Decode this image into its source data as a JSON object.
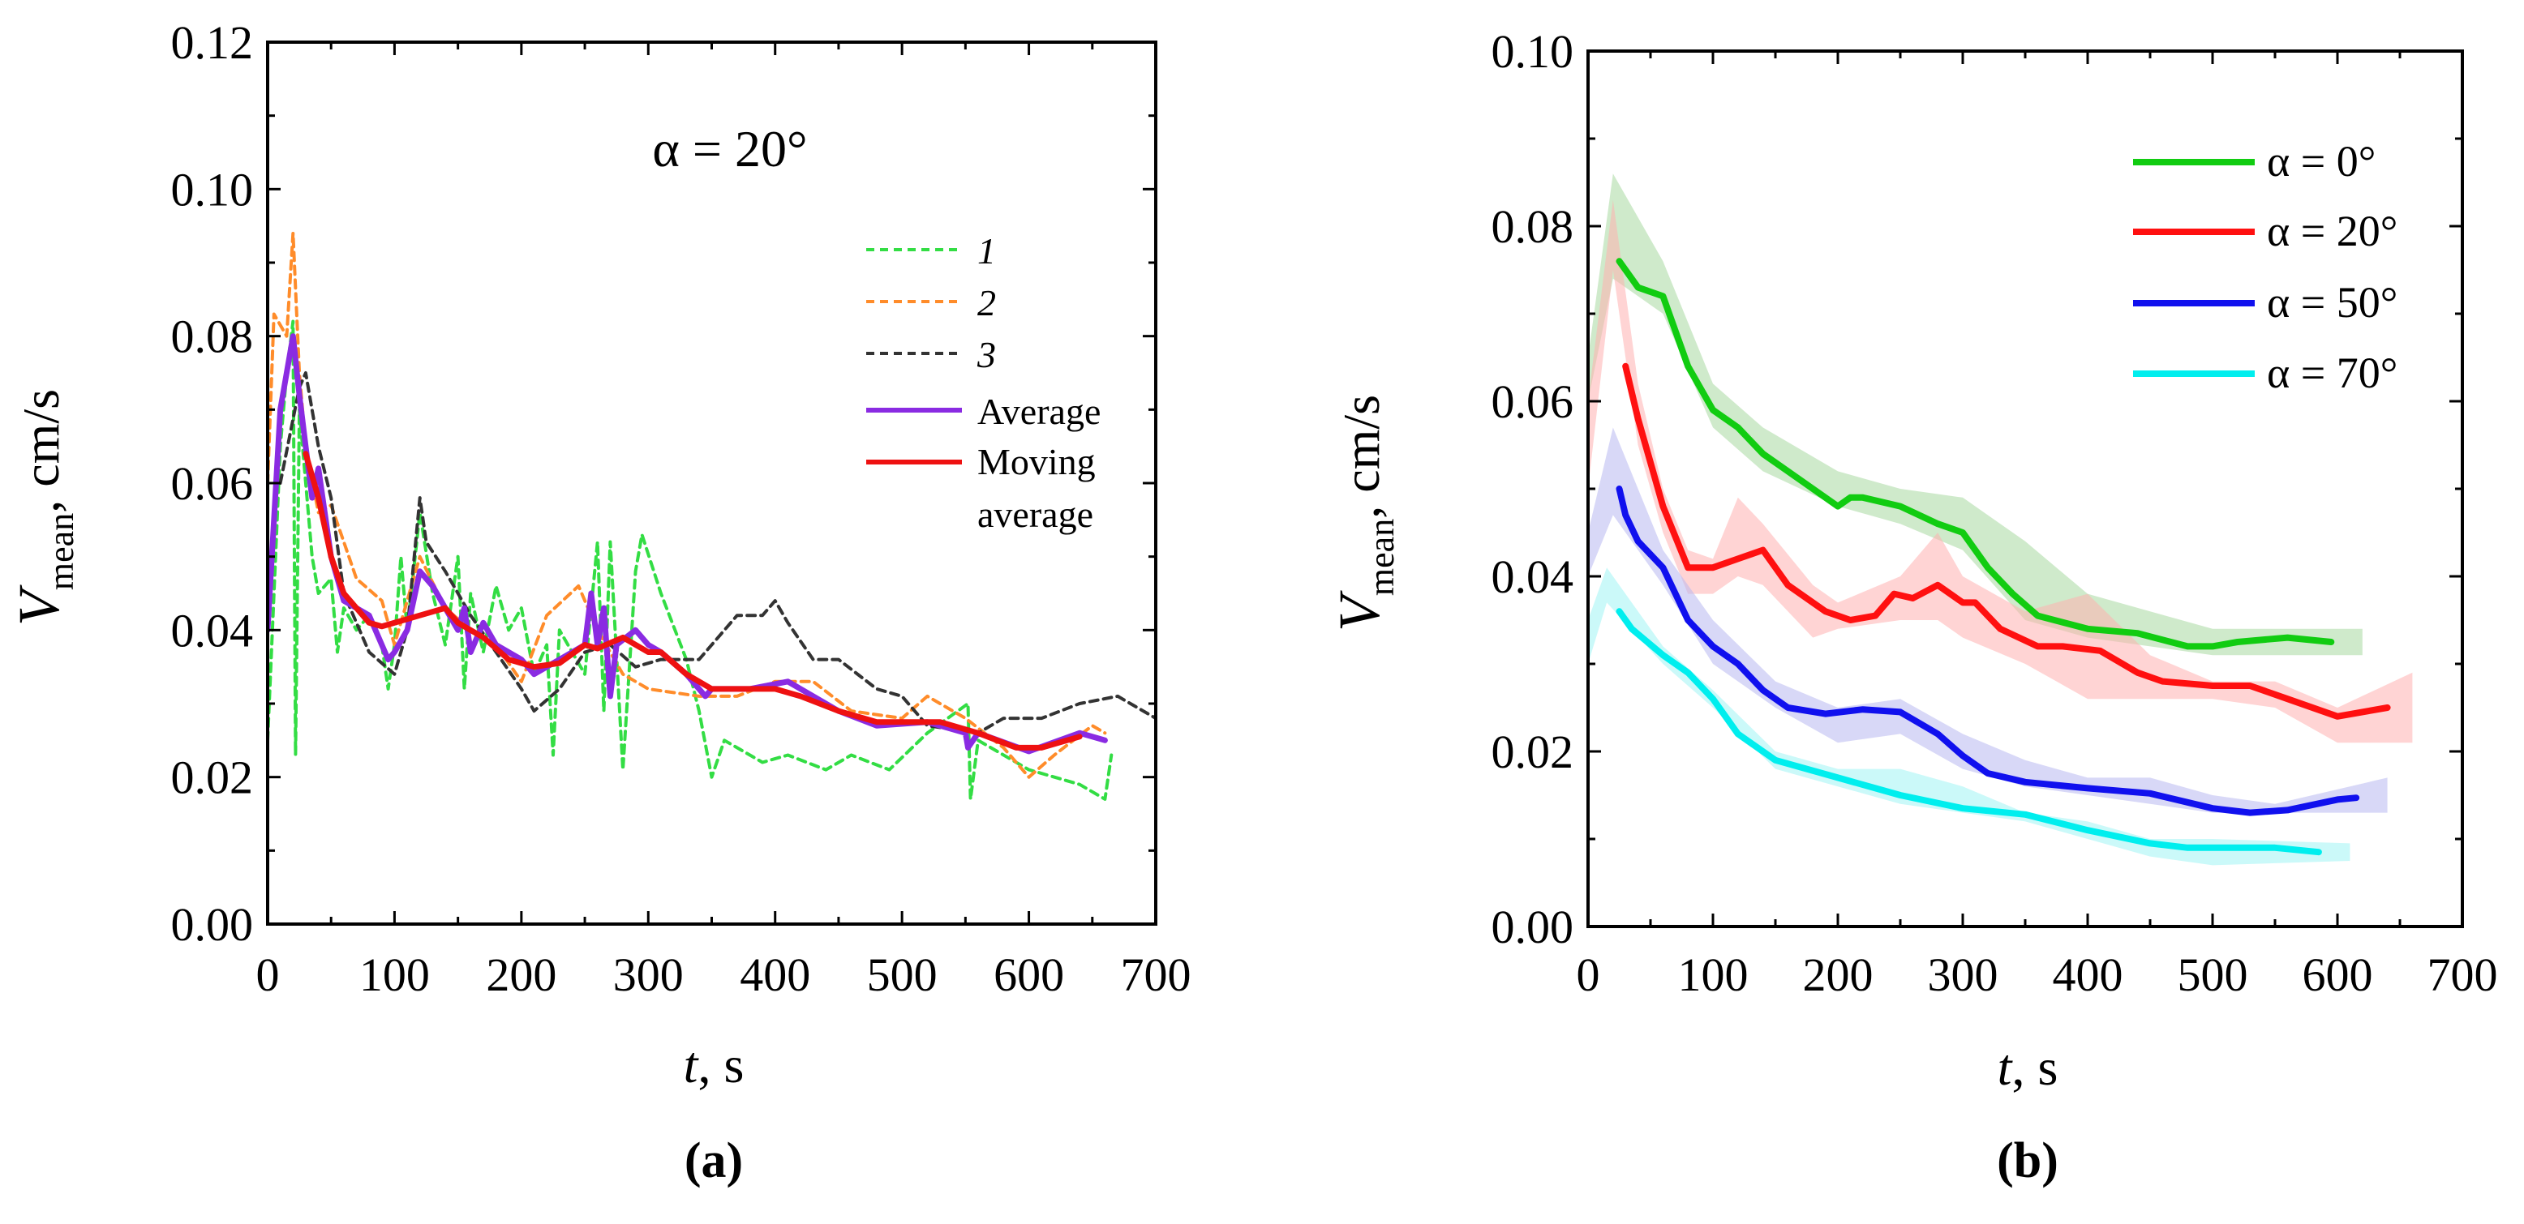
{
  "chart_data": [
    {
      "panel": "(a)",
      "type": "line",
      "annotation": "α = 20°",
      "xlabel_italic": "t",
      "xlabel_rest": ", s",
      "ylabel_main": "V",
      "ylabel_sub": "mean",
      "ylabel_rest": ", cm/s",
      "xlim": [
        0,
        700
      ],
      "ylim": [
        0,
        0.12
      ],
      "xticks": [
        "0",
        "100",
        "200",
        "300",
        "400",
        "500",
        "600",
        "700"
      ],
      "yticks": [
        "0.00",
        "0.02",
        "0.04",
        "0.06",
        "0.08",
        "0.10",
        "0.12"
      ],
      "legend_position": "upper-right",
      "series": [
        {
          "name": "1",
          "label_italic": true,
          "color": "#33dd44",
          "style": "dashed",
          "x": [
            0,
            5,
            10,
            15,
            20,
            22,
            25,
            35,
            40,
            50,
            55,
            60,
            70,
            80,
            90,
            95,
            100,
            105,
            110,
            120,
            130,
            140,
            150,
            155,
            160,
            170,
            180,
            190,
            200,
            210,
            220,
            225,
            230,
            250,
            260,
            265,
            270,
            280,
            290,
            295,
            310,
            330,
            340,
            350,
            360,
            390,
            410,
            440,
            460,
            490,
            520,
            552,
            554,
            560,
            600,
            640,
            660,
            665
          ],
          "y": [
            0.025,
            0.045,
            0.065,
            0.075,
            0.082,
            0.023,
            0.07,
            0.05,
            0.045,
            0.047,
            0.037,
            0.043,
            0.04,
            0.042,
            0.038,
            0.032,
            0.038,
            0.05,
            0.04,
            0.056,
            0.045,
            0.038,
            0.05,
            0.032,
            0.045,
            0.037,
            0.046,
            0.04,
            0.043,
            0.034,
            0.038,
            0.023,
            0.04,
            0.034,
            0.052,
            0.029,
            0.052,
            0.021,
            0.048,
            0.053,
            0.045,
            0.036,
            0.029,
            0.02,
            0.025,
            0.022,
            0.023,
            0.021,
            0.023,
            0.021,
            0.026,
            0.03,
            0.017,
            0.025,
            0.021,
            0.019,
            0.017,
            0.023
          ]
        },
        {
          "name": "2",
          "label_italic": true,
          "color": "#ff8c2a",
          "style": "dashed",
          "x": [
            0,
            5,
            15,
            20,
            25,
            30,
            40,
            50,
            60,
            70,
            90,
            100,
            120,
            140,
            160,
            180,
            200,
            220,
            245,
            260,
            280,
            300,
            340,
            370,
            400,
            430,
            460,
            500,
            520,
            550,
            580,
            600,
            620,
            650,
            660
          ],
          "y": [
            0.06,
            0.083,
            0.08,
            0.094,
            0.075,
            0.065,
            0.056,
            0.057,
            0.052,
            0.047,
            0.044,
            0.038,
            0.05,
            0.043,
            0.04,
            0.038,
            0.033,
            0.042,
            0.046,
            0.04,
            0.034,
            0.032,
            0.031,
            0.031,
            0.033,
            0.033,
            0.029,
            0.028,
            0.031,
            0.028,
            0.024,
            0.02,
            0.023,
            0.027,
            0.026
          ]
        },
        {
          "name": "3",
          "label_italic": true,
          "color": "#333333",
          "style": "dashed",
          "x": [
            10,
            25,
            30,
            40,
            50,
            60,
            70,
            80,
            100,
            110,
            120,
            125,
            140,
            160,
            180,
            200,
            210,
            230,
            250,
            270,
            290,
            310,
            340,
            370,
            390,
            400,
            410,
            430,
            450,
            480,
            500,
            520,
            560,
            580,
            610,
            640,
            670,
            700
          ],
          "y": [
            0.06,
            0.073,
            0.075,
            0.065,
            0.058,
            0.045,
            0.041,
            0.037,
            0.034,
            0.04,
            0.058,
            0.052,
            0.048,
            0.042,
            0.037,
            0.032,
            0.029,
            0.032,
            0.037,
            0.038,
            0.035,
            0.036,
            0.036,
            0.042,
            0.042,
            0.044,
            0.041,
            0.036,
            0.036,
            0.032,
            0.031,
            0.027,
            0.026,
            0.028,
            0.028,
            0.03,
            0.031,
            0.028
          ]
        },
        {
          "name": "Average",
          "label_italic": false,
          "color": "#8a2be2",
          "style": "solid",
          "x": [
            0,
            10,
            20,
            25,
            30,
            35,
            40,
            50,
            60,
            80,
            95,
            100,
            110,
            120,
            130,
            150,
            155,
            160,
            170,
            180,
            200,
            210,
            220,
            230,
            250,
            255,
            260,
            265,
            270,
            275,
            290,
            300,
            310,
            330,
            345,
            350,
            380,
            410,
            430,
            450,
            480,
            520,
            550,
            552,
            560,
            600,
            640,
            660
          ],
          "y": [
            0.04,
            0.07,
            0.08,
            0.072,
            0.065,
            0.058,
            0.062,
            0.05,
            0.044,
            0.042,
            0.036,
            0.037,
            0.04,
            0.048,
            0.046,
            0.04,
            0.043,
            0.037,
            0.041,
            0.038,
            0.036,
            0.034,
            0.035,
            0.036,
            0.038,
            0.045,
            0.038,
            0.043,
            0.031,
            0.038,
            0.04,
            0.038,
            0.037,
            0.034,
            0.031,
            0.032,
            0.032,
            0.033,
            0.031,
            0.029,
            0.027,
            0.0275,
            0.026,
            0.024,
            0.026,
            0.0235,
            0.026,
            0.025
          ]
        },
        {
          "name": "Moving average",
          "label_lines": [
            "Moving",
            "average"
          ],
          "label_italic": false,
          "color": "#ee1111",
          "style": "solid",
          "x": [
            30,
            40,
            50,
            60,
            70,
            80,
            90,
            100,
            120,
            140,
            150,
            170,
            190,
            210,
            230,
            250,
            260,
            280,
            300,
            310,
            330,
            350,
            380,
            400,
            420,
            450,
            480,
            500,
            530,
            560,
            590,
            610,
            640
          ],
          "y": [
            0.064,
            0.058,
            0.05,
            0.045,
            0.043,
            0.041,
            0.0405,
            0.041,
            0.042,
            0.043,
            0.041,
            0.039,
            0.036,
            0.035,
            0.0355,
            0.038,
            0.0375,
            0.039,
            0.037,
            0.037,
            0.034,
            0.032,
            0.032,
            0.032,
            0.031,
            0.029,
            0.0275,
            0.0275,
            0.0275,
            0.026,
            0.024,
            0.024,
            0.0255
          ]
        }
      ]
    },
    {
      "panel": "(b)",
      "type": "line",
      "xlabel_italic": "t",
      "xlabel_rest": ", s",
      "ylabel_main": "V",
      "ylabel_sub": "mean",
      "ylabel_rest": ", cm/s",
      "xlim": [
        0,
        700
      ],
      "ylim": [
        0,
        0.1
      ],
      "xticks": [
        "0",
        "100",
        "200",
        "300",
        "400",
        "500",
        "600",
        "700"
      ],
      "yticks": [
        "0.00",
        "0.02",
        "0.04",
        "0.06",
        "0.08",
        "0.10"
      ],
      "legend_position": "upper-right",
      "series": [
        {
          "name": "α = 0°",
          "color": "#11cc11",
          "band_color": "#a8d8a0",
          "x": [
            25,
            40,
            60,
            80,
            100,
            120,
            140,
            160,
            200,
            210,
            220,
            250,
            280,
            300,
            320,
            340,
            360,
            400,
            440,
            480,
            500,
            520,
            560,
            595
          ],
          "y": [
            0.076,
            0.073,
            0.072,
            0.064,
            0.059,
            0.057,
            0.054,
            0.052,
            0.048,
            0.049,
            0.049,
            0.048,
            0.046,
            0.045,
            0.041,
            0.038,
            0.0355,
            0.034,
            0.0335,
            0.032,
            0.032,
            0.0325,
            0.033,
            0.0325
          ],
          "band_x": [
            0,
            20,
            60,
            100,
            140,
            200,
            250,
            300,
            350,
            400,
            450,
            500,
            550,
            620
          ],
          "band_low": [
            0.06,
            0.074,
            0.07,
            0.057,
            0.052,
            0.048,
            0.046,
            0.043,
            0.035,
            0.033,
            0.032,
            0.031,
            0.031,
            0.031
          ],
          "band_high": [
            0.065,
            0.086,
            0.076,
            0.062,
            0.057,
            0.052,
            0.05,
            0.049,
            0.044,
            0.038,
            0.036,
            0.034,
            0.034,
            0.034
          ]
        },
        {
          "name": "α = 20°",
          "color": "#ff1010",
          "band_color": "#ffb0b0",
          "x": [
            30,
            40,
            60,
            80,
            100,
            120,
            140,
            160,
            190,
            210,
            230,
            245,
            260,
            280,
            300,
            310,
            330,
            360,
            380,
            410,
            440,
            460,
            500,
            530,
            560,
            600,
            640
          ],
          "y": [
            0.064,
            0.058,
            0.048,
            0.041,
            0.041,
            0.042,
            0.043,
            0.039,
            0.036,
            0.035,
            0.0355,
            0.038,
            0.0375,
            0.039,
            0.037,
            0.037,
            0.034,
            0.032,
            0.032,
            0.0315,
            0.029,
            0.028,
            0.0275,
            0.0275,
            0.026,
            0.024,
            0.025
          ],
          "band_x": [
            0,
            20,
            40,
            60,
            80,
            100,
            120,
            140,
            180,
            200,
            250,
            280,
            300,
            350,
            400,
            450,
            500,
            550,
            600,
            660
          ],
          "band_low": [
            0.05,
            0.075,
            0.055,
            0.045,
            0.038,
            0.038,
            0.04,
            0.039,
            0.033,
            0.034,
            0.035,
            0.035,
            0.033,
            0.03,
            0.026,
            0.026,
            0.026,
            0.025,
            0.021,
            0.021
          ],
          "band_high": [
            0.06,
            0.083,
            0.062,
            0.05,
            0.043,
            0.042,
            0.049,
            0.046,
            0.039,
            0.037,
            0.04,
            0.045,
            0.04,
            0.036,
            0.038,
            0.031,
            0.028,
            0.028,
            0.025,
            0.029
          ]
        },
        {
          "name": "α = 50°",
          "color": "#1010ee",
          "band_color": "#b8b8f0",
          "x": [
            25,
            30,
            40,
            60,
            80,
            100,
            120,
            140,
            160,
            190,
            220,
            250,
            280,
            300,
            320,
            350,
            400,
            450,
            500,
            530,
            560,
            600,
            615
          ],
          "y": [
            0.05,
            0.047,
            0.044,
            0.041,
            0.035,
            0.032,
            0.03,
            0.027,
            0.025,
            0.0243,
            0.0248,
            0.0245,
            0.022,
            0.0195,
            0.0175,
            0.0165,
            0.0158,
            0.0152,
            0.0135,
            0.013,
            0.0133,
            0.0145,
            0.0147
          ],
          "band_x": [
            0,
            20,
            60,
            100,
            150,
            200,
            250,
            300,
            350,
            400,
            450,
            500,
            550,
            640
          ],
          "band_low": [
            0.04,
            0.047,
            0.039,
            0.03,
            0.025,
            0.021,
            0.022,
            0.018,
            0.016,
            0.015,
            0.014,
            0.013,
            0.013,
            0.013
          ],
          "band_high": [
            0.045,
            0.057,
            0.043,
            0.035,
            0.028,
            0.025,
            0.026,
            0.022,
            0.019,
            0.017,
            0.017,
            0.015,
            0.014,
            0.017
          ]
        },
        {
          "name": "α = 70°",
          "color": "#00eeee",
          "band_color": "#a0f4f4",
          "x": [
            25,
            35,
            60,
            80,
            100,
            120,
            150,
            200,
            250,
            300,
            350,
            400,
            450,
            480,
            550,
            585
          ],
          "y": [
            0.036,
            0.034,
            0.031,
            0.029,
            0.026,
            0.022,
            0.019,
            0.017,
            0.015,
            0.0135,
            0.0128,
            0.011,
            0.0095,
            0.009,
            0.009,
            0.0085
          ],
          "band_x": [
            0,
            15,
            60,
            100,
            150,
            200,
            250,
            300,
            350,
            400,
            450,
            500,
            610
          ],
          "band_low": [
            0.03,
            0.037,
            0.03,
            0.025,
            0.018,
            0.016,
            0.014,
            0.013,
            0.012,
            0.01,
            0.008,
            0.007,
            0.0075
          ],
          "band_high": [
            0.035,
            0.041,
            0.032,
            0.027,
            0.02,
            0.018,
            0.018,
            0.016,
            0.013,
            0.012,
            0.01,
            0.01,
            0.0095
          ]
        }
      ]
    }
  ]
}
